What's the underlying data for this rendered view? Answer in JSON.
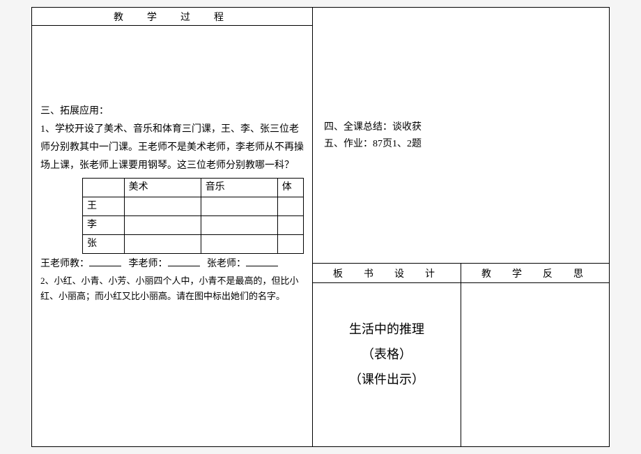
{
  "leftHeader": "教　学　过　程",
  "section3": {
    "title": "三、拓展应用：",
    "q1": "1、学校开设了美术、音乐和体育三门课，王、李、张三位老师分别教其中一门课。王老师不是美术老师，李老师从不再操场上课，张老师上课要用钢琴。这三位老师分别教哪一科？",
    "tableHeaders": [
      "",
      "美术",
      "音乐",
      "体"
    ],
    "tableRows": [
      "王",
      "李",
      "张"
    ],
    "blanksLine": {
      "p1": "王老师教：",
      "p2": "李老师：",
      "p3": "张老师："
    },
    "q2": "2、小红、小青、小芳、小丽四个人中，小青不是最高的，但比小红、小丽高；而小红又比小丽高。请在图中标出她们的名字。"
  },
  "rightTop": {
    "line1": "四、全课总结：谈收获",
    "line2": "五、作业：87页1、2题"
  },
  "rightHeaders": {
    "design": "板　书　设　计",
    "reflect": "教　学　反　思"
  },
  "board": {
    "line1": "生活中的推理",
    "line2": "（表格）",
    "line3": "（课件出示）"
  }
}
